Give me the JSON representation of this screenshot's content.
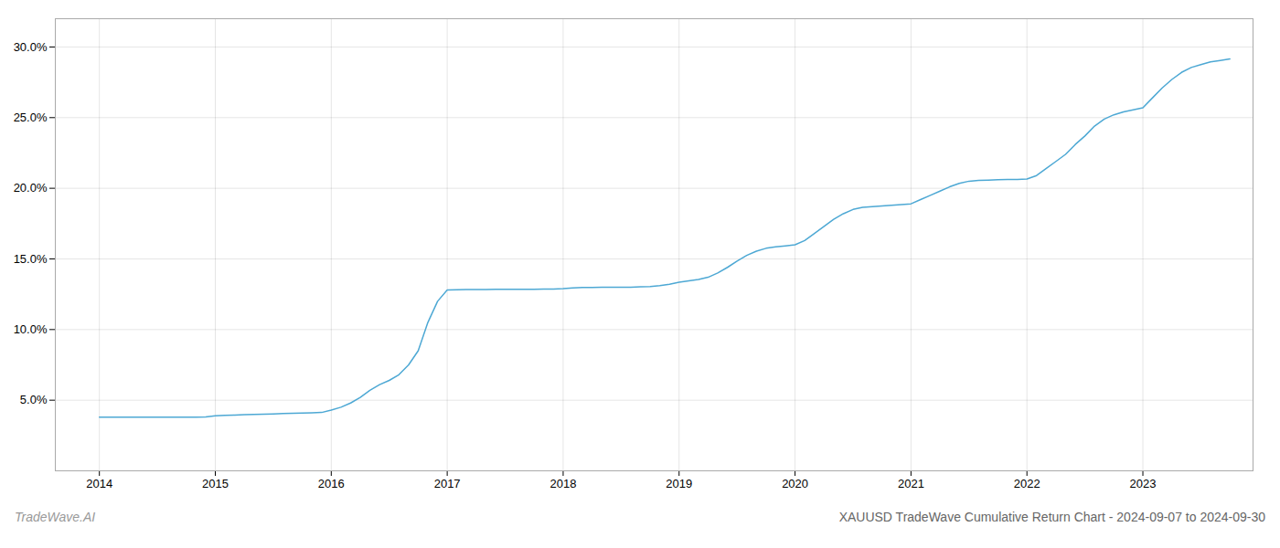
{
  "chart_data": {
    "type": "line",
    "title": "XAUUSD TradeWave Cumulative Return Chart - 2024-09-07 to 2024-09-30",
    "annotations": [
      "TradeWave.AI"
    ],
    "color": "#4da8d4",
    "x": [
      2014.0,
      2014.083,
      2014.167,
      2014.25,
      2014.333,
      2014.417,
      2014.5,
      2014.583,
      2014.667,
      2014.75,
      2014.833,
      2014.917,
      2015.0,
      2015.083,
      2015.167,
      2015.25,
      2015.333,
      2015.417,
      2015.5,
      2015.583,
      2015.667,
      2015.75,
      2015.833,
      2015.917,
      2016.0,
      2016.083,
      2016.167,
      2016.25,
      2016.333,
      2016.417,
      2016.5,
      2016.583,
      2016.667,
      2016.75,
      2016.833,
      2016.917,
      2017.0,
      2017.083,
      2017.167,
      2017.25,
      2017.333,
      2017.417,
      2017.5,
      2017.583,
      2017.667,
      2017.75,
      2017.833,
      2017.917,
      2018.0,
      2018.083,
      2018.167,
      2018.25,
      2018.333,
      2018.417,
      2018.5,
      2018.583,
      2018.667,
      2018.75,
      2018.833,
      2018.917,
      2019.0,
      2019.083,
      2019.167,
      2019.25,
      2019.333,
      2019.417,
      2019.5,
      2019.583,
      2019.667,
      2019.75,
      2019.833,
      2019.917,
      2020.0,
      2020.083,
      2020.167,
      2020.25,
      2020.333,
      2020.417,
      2020.5,
      2020.583,
      2020.667,
      2020.75,
      2020.833,
      2020.917,
      2021.0,
      2021.083,
      2021.167,
      2021.25,
      2021.333,
      2021.417,
      2021.5,
      2021.583,
      2021.667,
      2021.75,
      2021.833,
      2021.917,
      2022.0,
      2022.083,
      2022.167,
      2022.25,
      2022.333,
      2022.417,
      2022.5,
      2022.583,
      2022.667,
      2022.75,
      2022.833,
      2022.917,
      2023.0,
      2023.083,
      2023.167,
      2023.25,
      2023.333,
      2023.417,
      2023.5,
      2023.583,
      2023.667,
      2023.75
    ],
    "values": [
      3.8,
      3.8,
      3.8,
      3.8,
      3.8,
      3.8,
      3.8,
      3.8,
      3.8,
      3.8,
      3.8,
      3.82,
      3.9,
      3.92,
      3.95,
      3.97,
      3.99,
      4.01,
      4.03,
      4.05,
      4.07,
      4.09,
      4.11,
      4.13,
      4.3,
      4.5,
      4.8,
      5.2,
      5.7,
      6.1,
      6.4,
      6.8,
      7.5,
      8.5,
      10.5,
      12.0,
      12.8,
      12.82,
      12.83,
      12.84,
      12.84,
      12.85,
      12.85,
      12.85,
      12.85,
      12.85,
      12.86,
      12.87,
      12.9,
      12.95,
      12.97,
      12.98,
      12.99,
      13.0,
      13.0,
      13.0,
      13.02,
      13.05,
      13.1,
      13.2,
      13.35,
      13.45,
      13.55,
      13.7,
      14.0,
      14.4,
      14.85,
      15.25,
      15.55,
      15.75,
      15.85,
      15.92,
      16.0,
      16.3,
      16.8,
      17.3,
      17.8,
      18.2,
      18.5,
      18.65,
      18.7,
      18.75,
      18.8,
      18.85,
      18.9,
      19.2,
      19.5,
      19.8,
      20.1,
      20.35,
      20.5,
      20.55,
      20.58,
      20.6,
      20.62,
      20.63,
      20.65,
      20.9,
      21.4,
      21.9,
      22.4,
      23.1,
      23.7,
      24.4,
      24.9,
      25.2,
      25.4,
      25.55,
      25.7,
      26.4,
      27.1,
      27.7,
      28.2,
      28.55,
      28.75,
      28.95,
      29.05,
      29.15
    ],
    "xlim": [
      2013.62,
      2023.95
    ],
    "xticks": [
      2014,
      2015,
      2016,
      2017,
      2018,
      2019,
      2020,
      2021,
      2022,
      2023
    ],
    "ylim": [
      0,
      32
    ],
    "yticks": [
      {
        "value": 5.0,
        "label": "5.0%"
      },
      {
        "value": 10.0,
        "label": "10.0%"
      },
      {
        "value": 15.0,
        "label": "15.0%"
      },
      {
        "value": 20.0,
        "label": "20.0%"
      },
      {
        "value": 25.0,
        "label": "25.0%"
      },
      {
        "value": 30.0,
        "label": "30.0%"
      }
    ],
    "grid": true
  }
}
